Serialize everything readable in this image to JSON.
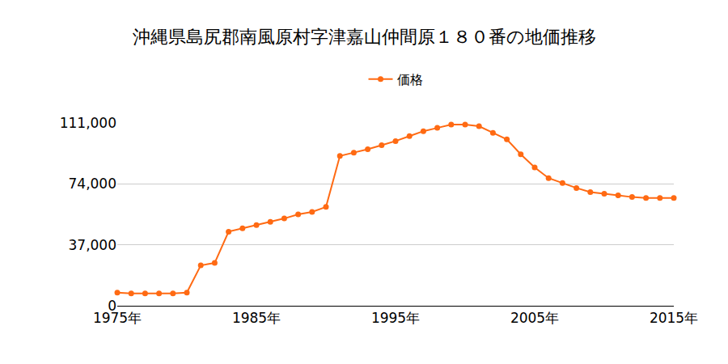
{
  "chart_data": {
    "type": "line",
    "title": "沖縄県島尻郡南風原村字津嘉山仲間原１８０番の地価推移",
    "x": [
      1975,
      1976,
      1977,
      1978,
      1979,
      1980,
      1981,
      1982,
      1983,
      1984,
      1985,
      1986,
      1987,
      1988,
      1989,
      1990,
      1991,
      1992,
      1993,
      1994,
      1995,
      1996,
      1997,
      1998,
      1999,
      2000,
      2001,
      2002,
      2003,
      2004,
      2005,
      2006,
      2007,
      2008,
      2009,
      2010,
      2011,
      2012,
      2013,
      2014,
      2015
    ],
    "series": [
      {
        "name": "価格",
        "color": "#ff6a13",
        "marker": "circle",
        "values": [
          8000,
          7500,
          7500,
          7500,
          7500,
          8000,
          24500,
          26000,
          45000,
          47000,
          49000,
          51000,
          53000,
          55500,
          57000,
          60000,
          91000,
          93000,
          95000,
          97500,
          100000,
          103000,
          106000,
          108000,
          110000,
          110000,
          109000,
          105000,
          101000,
          92000,
          84000,
          77500,
          74500,
          71500,
          69000,
          68000,
          67000,
          66000,
          65500,
          65500,
          65500
        ]
      }
    ],
    "xlim": [
      1975,
      2015
    ],
    "xticks": [
      {
        "value": 1975,
        "label": "1975年"
      },
      {
        "value": 1985,
        "label": "1985年"
      },
      {
        "value": 1995,
        "label": "1995年"
      },
      {
        "value": 2005,
        "label": "2005年"
      },
      {
        "value": 2015,
        "label": "2015年"
      }
    ],
    "ylim": [
      0,
      111000
    ],
    "yticks": [
      0,
      {
        "value": 37000,
        "label": "37,000"
      },
      {
        "value": 74000,
        "label": "74,000"
      },
      {
        "value": 111000,
        "label": "111,000"
      }
    ],
    "grid": true,
    "legend": "top"
  }
}
